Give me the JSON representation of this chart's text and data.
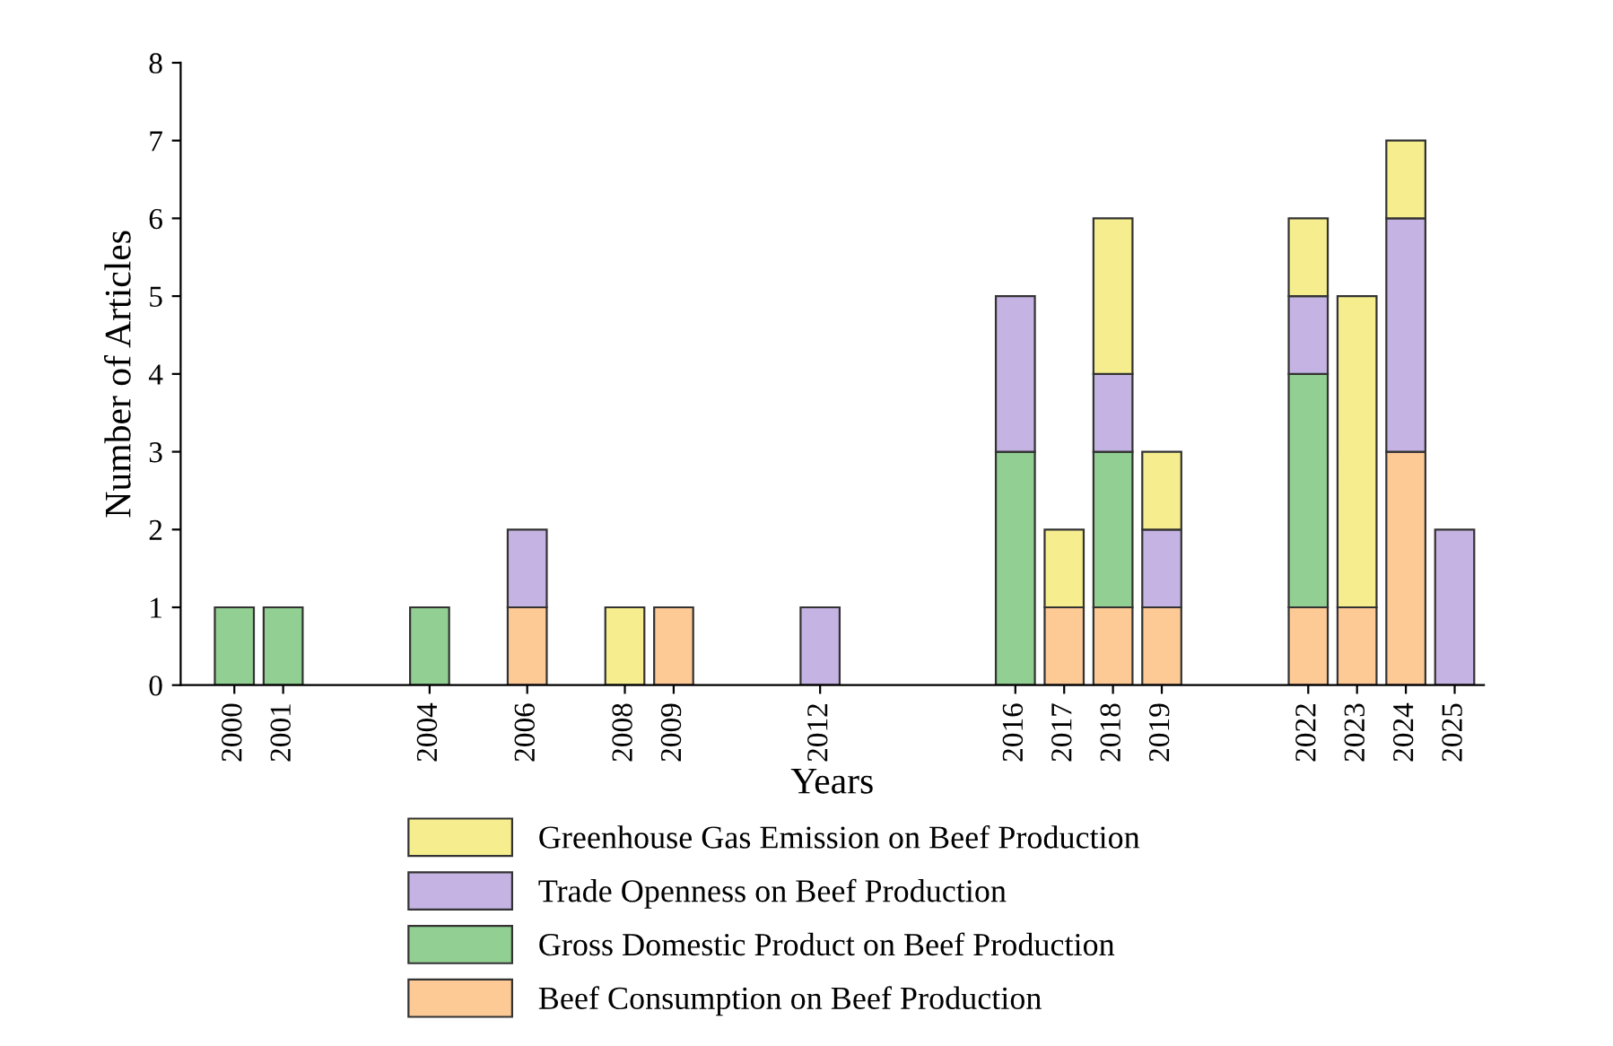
{
  "chart_data": {
    "type": "bar",
    "stacked": true,
    "xlabel": "Years",
    "ylabel": "Number of Articles",
    "x": [
      2000,
      2001,
      2004,
      2006,
      2008,
      2009,
      2012,
      2016,
      2017,
      2018,
      2019,
      2022,
      2023,
      2024,
      2025
    ],
    "xlim": [
      1998.9,
      2025.6
    ],
    "xticks": [
      2000,
      2001,
      2004,
      2006,
      2008,
      2009,
      2012,
      2016,
      2017,
      2018,
      2019,
      2022,
      2023,
      2024,
      2025
    ],
    "ylim": [
      0,
      8
    ],
    "yticks": [
      0,
      1,
      2,
      3,
      4,
      5,
      6,
      7,
      8
    ],
    "grid": false,
    "legend": "bottom",
    "series": [
      {
        "name": "Beef Consumption on Beef Production",
        "color": "#fdca96",
        "values": [
          null,
          null,
          null,
          1,
          null,
          1,
          null,
          null,
          1,
          1,
          1,
          1,
          1,
          3,
          null
        ]
      },
      {
        "name": "Gross Domestic Product on Beef Production",
        "color": "#92cf92",
        "values": [
          1,
          1,
          1,
          null,
          null,
          null,
          null,
          3,
          null,
          2,
          null,
          3,
          null,
          null,
          null
        ]
      },
      {
        "name": "Trade Openness on Beef Production",
        "color": "#c5b3e3",
        "values": [
          null,
          null,
          null,
          1,
          null,
          null,
          1,
          2,
          null,
          1,
          1,
          1,
          null,
          3,
          2
        ]
      },
      {
        "name": "Greenhouse Gas Emission on Beef Production",
        "color": "#f6ee8e",
        "values": [
          null,
          null,
          null,
          null,
          1,
          null,
          null,
          null,
          1,
          2,
          1,
          1,
          4,
          1,
          null
        ]
      }
    ]
  }
}
